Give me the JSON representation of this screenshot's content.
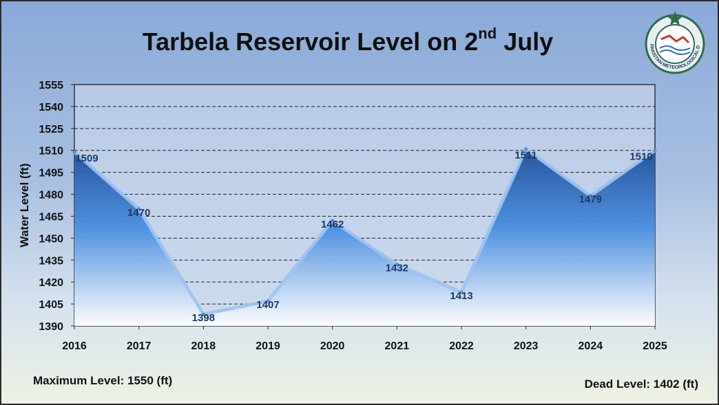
{
  "title_main": "Tarbela Reservoir Level on 2",
  "title_sup": "nd",
  "title_end": " July",
  "logo_text": "PAKISTAN METEOROLOGICAL DEPARTMENT",
  "footer": {
    "max_level": "Maximum Level: 1550 (ft)",
    "dead_level": "Dead Level: 1402 (ft)"
  },
  "chart_data": {
    "type": "area",
    "title": "Tarbela Reservoir Level on 2nd July",
    "xlabel": "",
    "ylabel": "Water Level (ft)",
    "categories": [
      "2016",
      "2017",
      "2018",
      "2019",
      "2020",
      "2021",
      "2022",
      "2023",
      "2024",
      "2025"
    ],
    "values": [
      1509,
      1470,
      1398,
      1407,
      1462,
      1432,
      1413,
      1511,
      1479,
      1510
    ],
    "ylim": [
      1390,
      1555
    ],
    "yticks": [
      1390,
      1405,
      1420,
      1435,
      1450,
      1465,
      1480,
      1495,
      1510,
      1525,
      1540,
      1555
    ],
    "grid": true,
    "colors": {
      "area_top": "#2f6fd0",
      "area_bottom": "#ffffff",
      "line": "#9cc3f0",
      "label": "#1f3864"
    }
  }
}
